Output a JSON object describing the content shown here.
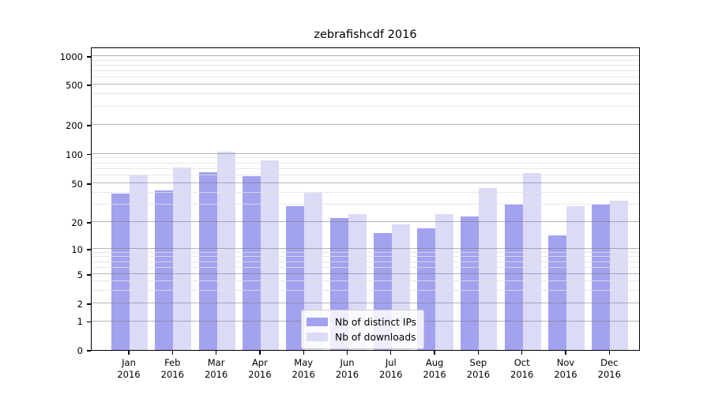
{
  "title": "zebrafishcdf 2016",
  "chart_data": {
    "type": "bar",
    "title": "zebrafishcdf 2016",
    "categories": [
      "Jan",
      "Feb",
      "Mar",
      "Apr",
      "May",
      "Jun",
      "Jul",
      "Aug",
      "Sep",
      "Oct",
      "Nov",
      "Dec"
    ],
    "category_year": "2016",
    "series": [
      {
        "name": "Nb of distinct IPs",
        "color": "#a2a2ef",
        "values": [
          39,
          42,
          65,
          59,
          29,
          22,
          15,
          17,
          23,
          30,
          14,
          30
        ]
      },
      {
        "name": "Nb of downloads",
        "color": "#dbdbf8",
        "values": [
          60,
          72,
          105,
          85,
          40,
          24,
          19,
          24,
          45,
          63,
          29,
          33
        ]
      }
    ],
    "yticks": [
      0,
      1,
      2,
      5,
      10,
      20,
      50,
      100,
      200,
      500,
      1000
    ],
    "yscale": "symlog",
    "grid": true,
    "legend_position": "lower center",
    "axis_color": "#000000",
    "background_color": "#ffffff"
  }
}
